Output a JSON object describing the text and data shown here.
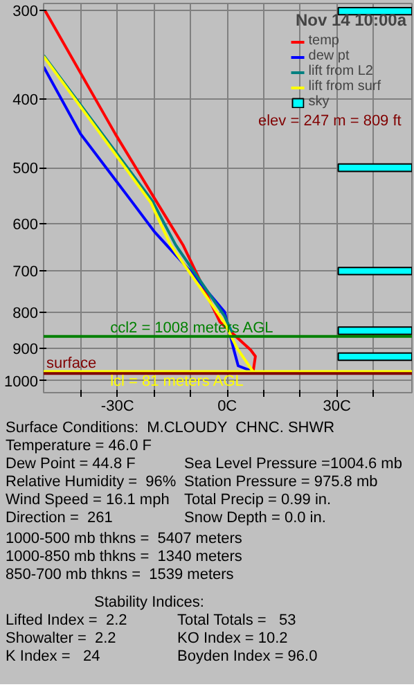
{
  "chart_data": {
    "type": "line",
    "title": "Nov 14 10:00a",
    "xlim": [
      -50.2,
      50.5
    ],
    "ylim": [
      1040,
      293
    ],
    "log": true,
    "grid": true,
    "legend": "top right",
    "marker": "none",
    "line_style": "solid",
    "xticks": [
      {
        "value": -40,
        "label": null
      },
      {
        "value": -30,
        "label": "-30C"
      },
      {
        "value": -20,
        "label": null
      },
      {
        "value": -10,
        "label": null
      },
      {
        "value": 0,
        "label": "0C"
      },
      {
        "value": 10,
        "label": null
      },
      {
        "value": 20,
        "label": null
      },
      {
        "value": 30,
        "label": "30C"
      },
      {
        "value": 40,
        "label": null
      }
    ],
    "yticks": [
      300,
      400,
      500,
      600,
      700,
      800,
      900,
      1000
    ],
    "series": [
      {
        "name": "temp",
        "color": "#ff0000",
        "x": [
          -49.8,
          -30.6,
          -19.2,
          -12.1,
          -2.0,
          6.4,
          7.7,
          7.1,
          7.4
        ],
        "values": [
          300,
          448,
          560,
          643,
          826,
          905,
          924,
          970,
          977
        ]
      },
      {
        "name": "dew pt",
        "color": "#0000ff",
        "x": [
          -50.2,
          -40.1,
          -25.9,
          -19.9,
          -9.8,
          -0.7,
          1.7,
          3.0,
          7.1
        ],
        "values": [
          360,
          448,
          560,
          616,
          703,
          800,
          900,
          953,
          971
        ]
      },
      {
        "name": "lift from L2",
        "color": "#008080",
        "x": [
          -50.2,
          -20.5,
          -14.1,
          -0.7,
          1.3
        ],
        "values": [
          347,
          557,
          643,
          811,
          855
        ]
      },
      {
        "name": "lift from surf",
        "color": "#ffff00",
        "x": [
          -50.2,
          -20.9,
          -15.5,
          -0.7,
          2.7,
          7.4
        ],
        "values": [
          348,
          560,
          643,
          829,
          900,
          977
        ]
      }
    ],
    "bands": [
      {
        "axis": "y",
        "from": 297,
        "to": 304,
        "label": "sky",
        "color": "#00ffff"
      },
      {
        "axis": "y",
        "from": 494,
        "to": 506,
        "label": null,
        "color": "#00ffff"
      },
      {
        "axis": "y",
        "from": 692,
        "to": 708,
        "label": null,
        "color": "#00ffff"
      },
      {
        "axis": "y",
        "from": 840,
        "to": 860,
        "label": null,
        "color": "#00ffff"
      },
      {
        "axis": "y",
        "from": 914,
        "to": 936,
        "label": null,
        "color": "#00ffff"
      }
    ],
    "ref_lines": [
      {
        "axis": "y",
        "value": 866,
        "color": "#008000"
      },
      {
        "axis": "y",
        "value": 971,
        "color": "#ffff00"
      },
      {
        "axis": "y",
        "value": 977,
        "label": "surface",
        "color": "#800000"
      }
    ],
    "annotations": [
      "elev = 247 m = 809 ft",
      {
        "text": "ccl2 = 1008 meters AGL",
        "x": -32,
        "y": 866
      },
      {
        "text": "lcl =   81 meters AGL",
        "x": -32,
        "y": 971
      },
      "Surface Conditions:  M.CLOUDY  CHNC. SHWR",
      "Temperature = 46.0 F",
      "Dew Point = 44.8 F",
      "Relative Humidity =  96%",
      "Wind Speed = 16.1 mph",
      "Direction =  261",
      "Sea Level Pressure =1004.6 mb",
      "Station Pressure = 975.8 mb",
      "Total Precip = 0.99 in.",
      "Snow Depth = 0.0 in.",
      "1000-500 mb thkns =  5407 meters",
      "1000-850 mb thkns =  1340 meters",
      "850-700 mb thkns =  1539 meters",
      "Stability Indices:",
      "Lifted Index =  2.2",
      "Showalter =  2.2",
      "K Index =   24",
      "Total Totals =   53",
      "KO Index = 10.2",
      "Boyden Index = 96.0"
    ]
  }
}
